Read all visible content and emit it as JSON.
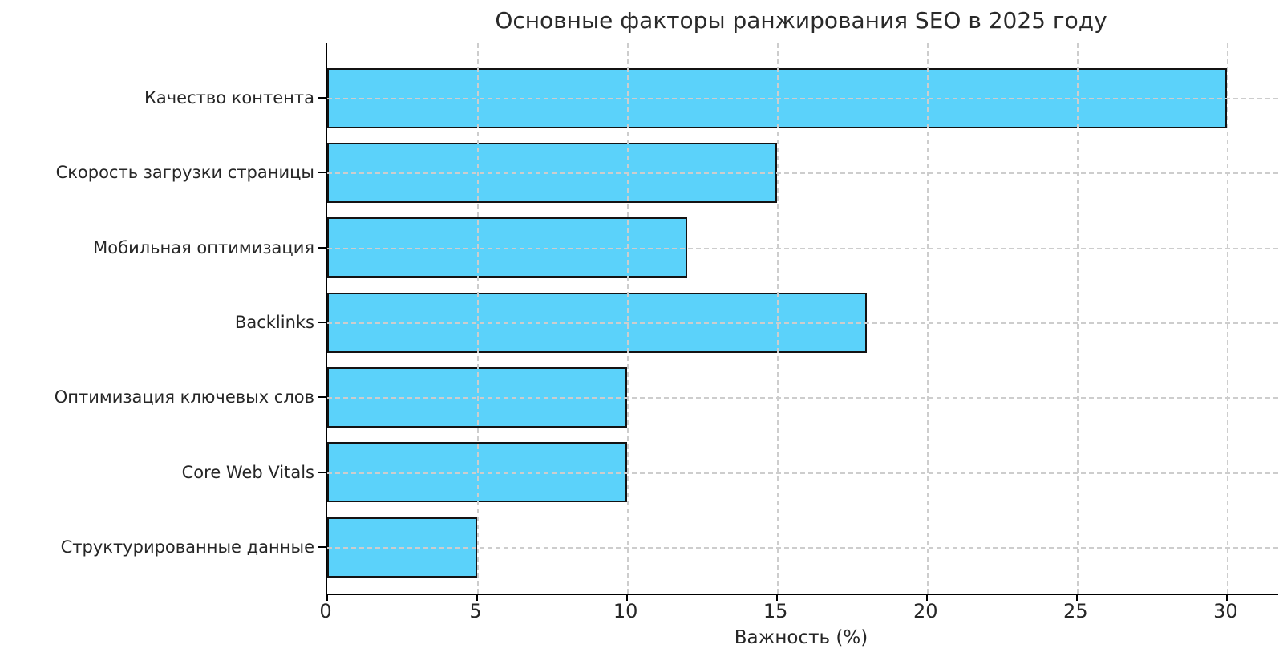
{
  "chart_data": {
    "type": "bar",
    "orientation": "horizontal",
    "title": "Основные факторы ранжирования SEO в 2025 году",
    "categories": [
      "Качество контента",
      "Скорость загрузки страницы",
      "Мобильная оптимизация",
      "Backlinks",
      "Оптимизация ключевых слов",
      "Core Web Vitals",
      "Структурированные данные"
    ],
    "values": [
      30,
      15,
      12,
      18,
      10,
      10,
      5
    ],
    "xlabel": "Важность (%)",
    "ylabel": "",
    "xlim": [
      0,
      31.7
    ],
    "xticks": [
      0,
      5,
      10,
      15,
      20,
      25,
      30
    ],
    "grid": "dashed, both axes, drawn over bars",
    "legend": "none",
    "colors": {
      "bar_fill": "#5bd2fa",
      "bar_edge": "#131313",
      "gridline": "#cdcdcd",
      "axis_spine": "#000000",
      "text": "#262626",
      "background": "#ffffff"
    }
  }
}
